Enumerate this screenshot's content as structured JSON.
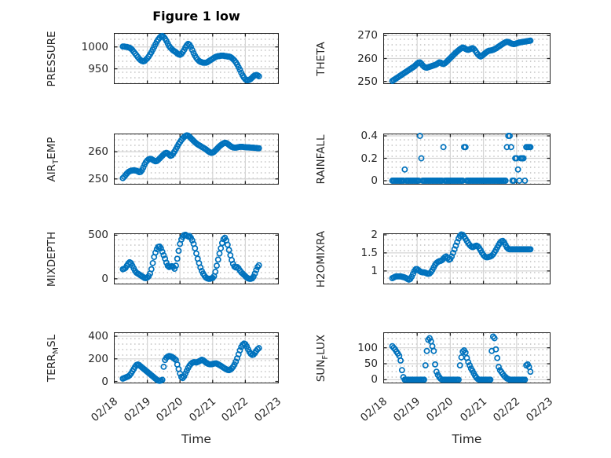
{
  "figure": {
    "title": "Figure 1 low"
  },
  "colors": {
    "marker": "#0072BD",
    "grid": "#d5d5d5",
    "minor_dot": "#c9c9c9",
    "axis_box": "#232323",
    "text": "#262626",
    "background": "#ffffff"
  },
  "chart_data": {
    "type": "scatter",
    "title": "Figure 1 low",
    "xlabel": "Time",
    "x_tick_labels": [
      "02/18",
      "02/19",
      "02/20",
      "02/21",
      "02/22",
      "02/23"
    ],
    "x_range_days": [
      0,
      5
    ],
    "x_unit": "days after 02/18 00:00",
    "sampling": {
      "start_day": 0.25,
      "step_days": 0.0416667,
      "count": 101
    },
    "grid": {
      "major": true,
      "minor_dotted": true
    },
    "legend": "none",
    "marker": {
      "shape": "open-circle",
      "color": "#0072BD"
    },
    "subplots": [
      {
        "id": "pressure",
        "ylabel_parts": [
          {
            "text": "PRESSURE",
            "sub": false
          }
        ],
        "ytick_labels": [
          "950",
          "1000"
        ],
        "yticks": [
          950,
          1000
        ],
        "ylim": [
          917,
          1030
        ],
        "values": [
          1001,
          1001,
          1000,
          1000,
          999,
          998,
          996,
          993,
          989,
          985,
          981,
          977,
          973,
          970,
          968,
          967,
          968,
          971,
          974,
          978,
          983,
          988,
          994,
          1000,
          1006,
          1012,
          1017,
          1021,
          1024,
          1025,
          1023,
          1019,
          1014,
          1008,
          1002,
          998,
          995,
          992,
          990,
          988,
          985,
          983,
          982,
          984,
          988,
          993,
          999,
          1004,
          1007,
          1005,
          1000,
          993,
          986,
          980,
          975,
          971,
          968,
          966,
          965,
          964,
          964,
          964,
          965,
          967,
          969,
          971,
          973,
          975,
          977,
          978,
          979,
          979,
          980,
          980,
          980,
          979,
          979,
          978,
          978,
          977,
          975,
          972,
          969,
          965,
          960,
          954,
          948,
          941,
          935,
          930,
          926,
          924,
          924,
          925,
          927,
          930,
          933,
          935,
          936,
          935,
          933
        ]
      },
      {
        "id": "theta",
        "ylabel_parts": [
          {
            "text": "THETA",
            "sub": false
          }
        ],
        "ytick_labels": [
          "250",
          "260",
          "270"
        ],
        "yticks": [
          250,
          260,
          270
        ],
        "ylim": [
          249.2,
          270.8
        ],
        "values": [
          250.2,
          250.6,
          251,
          251.4,
          251.8,
          252.2,
          252.6,
          253,
          253.4,
          253.8,
          254.2,
          254.6,
          255,
          255.4,
          255.8,
          256.2,
          256.6,
          257.2,
          257.8,
          258.2,
          258.3,
          257.8,
          257,
          256.4,
          256.1,
          256,
          256.2,
          256.4,
          256.6,
          256.8,
          257,
          257.2,
          257.5,
          257.9,
          258.3,
          258.2,
          257.8,
          257.6,
          257.9,
          258.4,
          259,
          259.6,
          260.2,
          260.8,
          261.4,
          262,
          262.6,
          263.1,
          263.6,
          264.1,
          264.5,
          264.8,
          264.6,
          264.2,
          263.9,
          263.8,
          264,
          264.3,
          264.5,
          264.2,
          263.5,
          262.6,
          261.8,
          261.2,
          260.9,
          261.2,
          261.7,
          262.2,
          262.7,
          263.1,
          263.4,
          263.5,
          263.6,
          263.8,
          264.1,
          264.4,
          264.8,
          265.2,
          265.6,
          266,
          266.4,
          266.8,
          267.1,
          267.3,
          267.2,
          266.9,
          266.6,
          266.4,
          266.3,
          266.4,
          266.6,
          266.8,
          267,
          267.1,
          267.2,
          267.3,
          267.4,
          267.5,
          267.6,
          267.7,
          267.8
        ]
      },
      {
        "id": "air_temp",
        "ylabel_parts": [
          {
            "text": "AIR",
            "sub": false
          },
          {
            "text": "T",
            "sub": true
          },
          {
            "text": "EMP",
            "sub": false
          }
        ],
        "ytick_labels": [
          "250",
          "260"
        ],
        "yticks": [
          250,
          260
        ],
        "ylim": [
          248.2,
          266.4
        ],
        "values": [
          250.3,
          250.8,
          251.4,
          252,
          252.5,
          252.8,
          253,
          253.1,
          253.2,
          253.1,
          253,
          252.8,
          252.5,
          252.6,
          253.2,
          254.2,
          255.3,
          256.2,
          256.8,
          257.2,
          257.4,
          257.3,
          257,
          256.7,
          256.5,
          256.6,
          257,
          257.5,
          258,
          258.5,
          259,
          259.4,
          259.6,
          259.4,
          258.9,
          258.5,
          258.7,
          259.3,
          260.1,
          261,
          261.9,
          262.8,
          263.6,
          264.3,
          264.9,
          265.4,
          265.8,
          266,
          265.9,
          265.5,
          265,
          264.5,
          264,
          263.5,
          263.1,
          262.7,
          262.4,
          262.1,
          261.8,
          261.5,
          261.2,
          260.9,
          260.5,
          260.1,
          259.8,
          259.6,
          259.7,
          260,
          260.5,
          261,
          261.5,
          262,
          262.4,
          262.8,
          263.1,
          263.3,
          263.2,
          262.9,
          262.5,
          262.1,
          261.8,
          261.6,
          261.5,
          261.5,
          261.6,
          261.7,
          261.8,
          261.8,
          261.8,
          261.7,
          261.7,
          261.6,
          261.6,
          261.6,
          261.5,
          261.5,
          261.5,
          261.4,
          261.4,
          261.3,
          261.3
        ]
      },
      {
        "id": "rainfall",
        "ylabel_parts": [
          {
            "text": "RAINFALL",
            "sub": false
          }
        ],
        "ytick_labels": [
          "0",
          "0.2",
          "0.4"
        ],
        "yticks": [
          0,
          0.2,
          0.4
        ],
        "ylim": [
          -0.028,
          0.414
        ],
        "values": [
          0,
          0,
          0,
          0,
          0,
          0,
          0,
          0,
          0,
          0.1,
          0,
          0,
          0,
          0,
          0,
          0,
          0,
          0,
          0,
          0,
          0.4,
          0.2,
          0,
          0,
          0,
          0,
          0,
          0,
          0,
          0,
          0,
          0,
          0,
          0,
          0,
          0,
          0,
          0.3,
          0,
          0,
          0,
          0,
          0,
          0,
          0,
          0,
          0,
          0,
          0,
          0,
          0,
          0,
          0.3,
          0.3,
          0,
          0,
          0,
          0,
          0,
          0,
          0,
          0,
          0,
          0,
          0,
          0,
          0,
          0,
          0,
          0,
          0,
          0,
          0,
          0,
          0,
          0,
          0,
          0,
          0,
          0,
          0,
          0,
          0,
          0.3,
          0.4,
          0.4,
          0.3,
          0,
          0,
          0.2,
          0.2,
          0.1,
          0,
          0.2,
          0.2,
          0.2,
          0,
          0.3,
          0.3,
          0.3,
          0.3
        ]
      },
      {
        "id": "mixdepth",
        "ylabel_parts": [
          {
            "text": "MIXDEPTH",
            "sub": false
          }
        ],
        "ytick_labels": [
          "0",
          "500"
        ],
        "yticks": [
          0,
          500
        ],
        "ylim": [
          -55,
          512
        ],
        "values": [
          110,
          115,
          125,
          150,
          175,
          190,
          180,
          150,
          120,
          90,
          70,
          60,
          50,
          40,
          30,
          20,
          10,
          8,
          15,
          30,
          60,
          110,
          180,
          250,
          300,
          340,
          365,
          370,
          350,
          310,
          270,
          230,
          185,
          150,
          135,
          140,
          145,
          135,
          115,
          150,
          230,
          320,
          400,
          450,
          480,
          500,
          505,
          495,
          485,
          490,
          470,
          440,
          400,
          350,
          290,
          230,
          180,
          130,
          90,
          60,
          35,
          15,
          5,
          0,
          0,
          5,
          10,
          30,
          80,
          150,
          220,
          290,
          350,
          410,
          455,
          470,
          440,
          390,
          330,
          270,
          215,
          170,
          140,
          130,
          135,
          120,
          95,
          75,
          60,
          45,
          30,
          15,
          5,
          0,
          0,
          5,
          25,
          60,
          100,
          135,
          155
        ]
      },
      {
        "id": "h2omixra",
        "ylabel_parts": [
          {
            "text": "H2OMIXRA",
            "sub": false
          }
        ],
        "ytick_labels": [
          "1",
          "1.5",
          "2"
        ],
        "yticks": [
          1,
          1.5,
          2
        ],
        "ylim": [
          0.65,
          2.02
        ],
        "values": [
          0.8,
          0.82,
          0.84,
          0.85,
          0.85,
          0.85,
          0.85,
          0.84,
          0.83,
          0.82,
          0.8,
          0.78,
          0.76,
          0.78,
          0.84,
          0.92,
          1,
          1.05,
          1.05,
          1.02,
          0.99,
          0.97,
          0.96,
          0.96,
          0.95,
          0.93,
          0.92,
          0.93,
          0.97,
          1.03,
          1.1,
          1.17,
          1.22,
          1.25,
          1.27,
          1.28,
          1.3,
          1.34,
          1.38,
          1.4,
          1.36,
          1.31,
          1.33,
          1.4,
          1.5,
          1.6,
          1.7,
          1.8,
          1.9,
          1.97,
          2.01,
          2,
          1.95,
          1.89,
          1.83,
          1.77,
          1.72,
          1.68,
          1.66,
          1.67,
          1.69,
          1.7,
          1.68,
          1.63,
          1.57,
          1.5,
          1.44,
          1.4,
          1.38,
          1.38,
          1.39,
          1.4,
          1.42,
          1.46,
          1.52,
          1.58,
          1.65,
          1.72,
          1.78,
          1.82,
          1.83,
          1.79,
          1.72,
          1.65,
          1.61,
          1.6,
          1.6,
          1.6,
          1.6,
          1.6,
          1.6,
          1.6,
          1.6,
          1.6,
          1.6,
          1.6,
          1.6,
          1.6,
          1.6,
          1.6,
          1.6
        ]
      },
      {
        "id": "terr_msl",
        "ylabel_parts": [
          {
            "text": "TERR",
            "sub": false
          },
          {
            "text": "M",
            "sub": true
          },
          {
            "text": "SL",
            "sub": false
          }
        ],
        "ytick_labels": [
          "0",
          "200",
          "400"
        ],
        "yticks": [
          0,
          200,
          400
        ],
        "ylim": [
          -10,
          428
        ],
        "values": [
          25,
          30,
          35,
          40,
          45,
          55,
          70,
          90,
          110,
          130,
          145,
          150,
          145,
          135,
          125,
          115,
          105,
          95,
          85,
          75,
          65,
          55,
          45,
          35,
          25,
          15,
          8,
          5,
          8,
          15,
          130,
          190,
          210,
          220,
          225,
          222,
          218,
          210,
          200,
          190,
          150,
          110,
          70,
          40,
          30,
          45,
          70,
          95,
          120,
          140,
          155,
          165,
          170,
          170,
          168,
          172,
          178,
          185,
          192,
          188,
          178,
          168,
          160,
          155,
          152,
          152,
          155,
          158,
          160,
          158,
          152,
          145,
          138,
          130,
          122,
          115,
          108,
          102,
          100,
          105,
          115,
          130,
          150,
          175,
          205,
          240,
          275,
          305,
          325,
          335,
          330,
          310,
          285,
          262,
          245,
          235,
          238,
          252,
          270,
          285,
          295
        ]
      },
      {
        "id": "sun_flux",
        "ylabel_parts": [
          {
            "text": "SUN",
            "sub": false
          },
          {
            "text": "F",
            "sub": true
          },
          {
            "text": "LUX",
            "sub": false
          }
        ],
        "ytick_labels": [
          "0",
          "50",
          "100"
        ],
        "yticks": [
          0,
          50,
          100
        ],
        "ylim": [
          -9,
          146
        ],
        "values": [
          105,
          100,
          95,
          88,
          82,
          75,
          60,
          30,
          8,
          0,
          0,
          0,
          0,
          0,
          0,
          0,
          0,
          0,
          0,
          0,
          0,
          0,
          0,
          0,
          45,
          90,
          125,
          130,
          120,
          105,
          90,
          48,
          25,
          15,
          8,
          3,
          0,
          0,
          0,
          0,
          0,
          0,
          0,
          0,
          0,
          0,
          0,
          0,
          0,
          45,
          70,
          88,
          92,
          85,
          68,
          55,
          45,
          35,
          28,
          20,
          12,
          6,
          2,
          0,
          0,
          0,
          0,
          0,
          0,
          0,
          0,
          0,
          90,
          135,
          130,
          95,
          68,
          40,
          30,
          24,
          18,
          12,
          8,
          4,
          2,
          0,
          0,
          0,
          0,
          0,
          0,
          0,
          0,
          0,
          0,
          0,
          0,
          45,
          48,
          40,
          25
        ]
      }
    ]
  }
}
